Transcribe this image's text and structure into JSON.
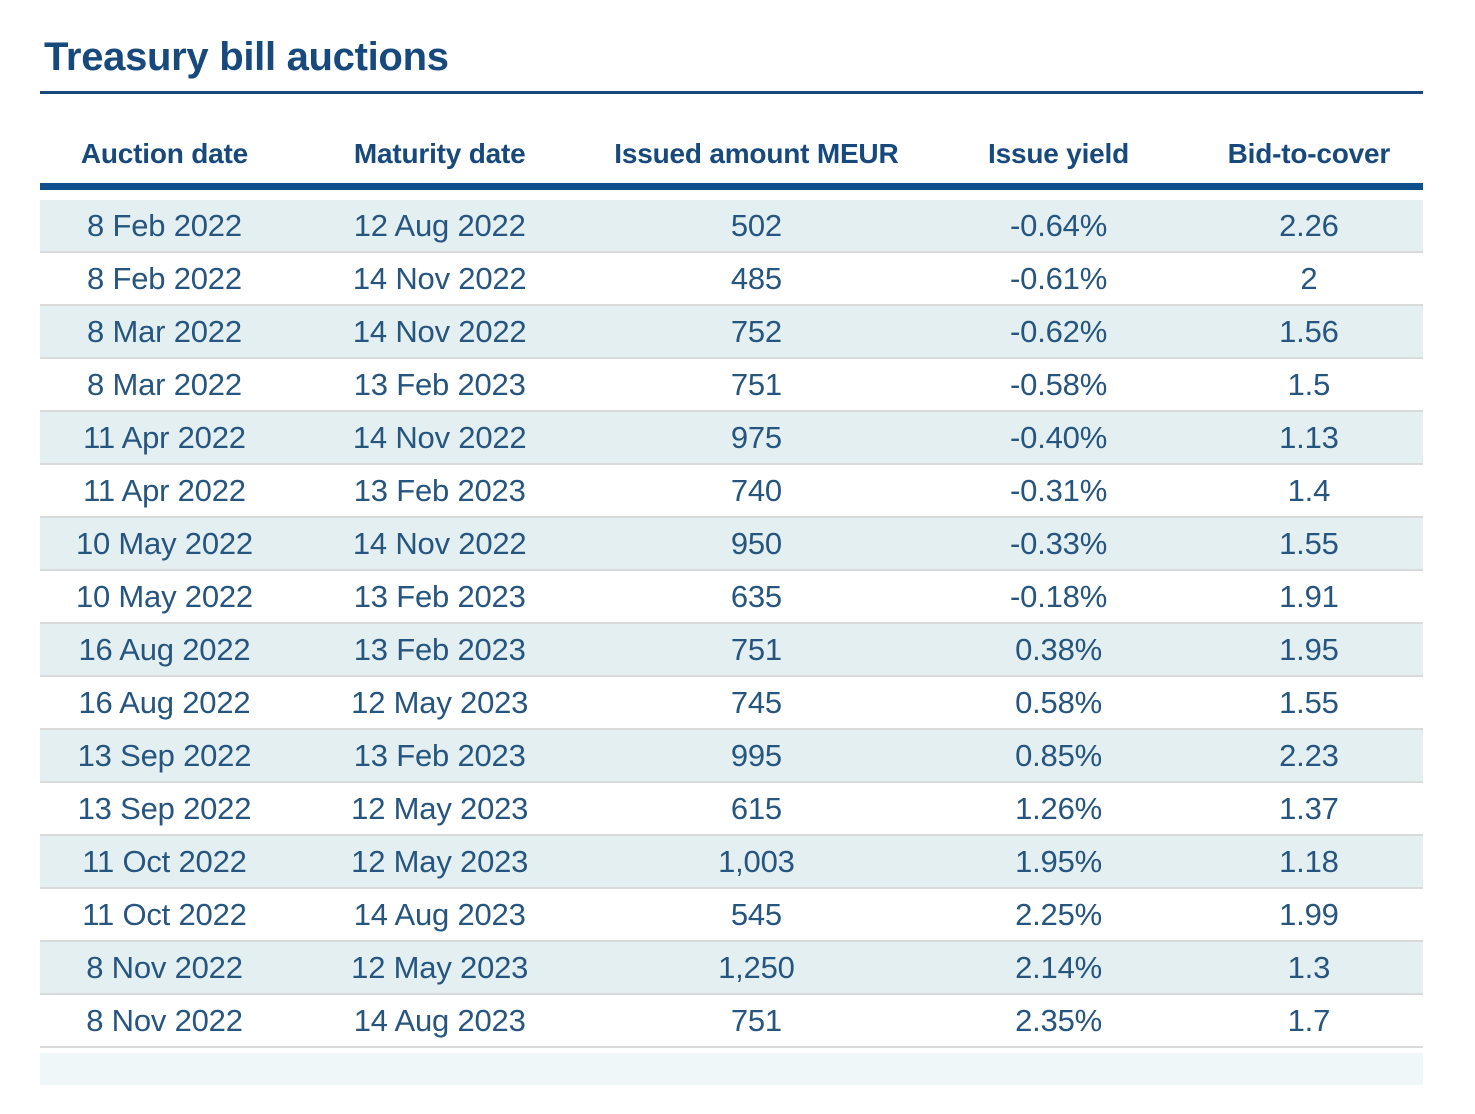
{
  "page": {
    "title": "Treasury bill auctions"
  },
  "colors": {
    "heading_navy": "#17497c",
    "cell_navy": "#26557f",
    "header_rule_blue": "#0f4f8c",
    "title_rule_navy": "#17497c",
    "stripe_background": "#e3eff1",
    "row_divider": "#dadada",
    "page_background": "#ffffff"
  },
  "chart_data": {
    "type": "table",
    "title": "Treasury bill auctions",
    "columns": [
      "Auction date",
      "Maturity date",
      "Issued amount MEUR",
      "Issue yield",
      "Bid-to-cover"
    ],
    "rows": [
      [
        "8 Feb 2022",
        "12 Aug 2022",
        "502",
        "-0.64%",
        "2.26"
      ],
      [
        "8 Feb 2022",
        "14 Nov 2022",
        "485",
        "-0.61%",
        "2"
      ],
      [
        "8 Mar 2022",
        "14 Nov 2022",
        "752",
        "-0.62%",
        "1.56"
      ],
      [
        "8 Mar 2022",
        "13 Feb 2023",
        "751",
        "-0.58%",
        "1.5"
      ],
      [
        "11 Apr 2022",
        "14 Nov 2022",
        "975",
        "-0.40%",
        "1.13"
      ],
      [
        "11 Apr 2022",
        "13 Feb 2023",
        "740",
        "-0.31%",
        "1.4"
      ],
      [
        "10 May 2022",
        "14 Nov 2022",
        "950",
        "-0.33%",
        "1.55"
      ],
      [
        "10 May 2022",
        "13 Feb 2023",
        "635",
        "-0.18%",
        "1.91"
      ],
      [
        "16 Aug 2022",
        "13 Feb 2023",
        "751",
        "0.38%",
        "1.95"
      ],
      [
        "16 Aug 2022",
        "12 May 2023",
        "745",
        "0.58%",
        "1.55"
      ],
      [
        "13 Sep 2022",
        "13 Feb 2023",
        "995",
        "0.85%",
        "2.23"
      ],
      [
        "13 Sep 2022",
        "12 May 2023",
        "615",
        "1.26%",
        "1.37"
      ],
      [
        "11 Oct 2022",
        "12 May 2023",
        "1,003",
        "1.95%",
        "1.18"
      ],
      [
        "11 Oct 2022",
        "14 Aug 2023",
        "545",
        "2.25%",
        "1.99"
      ],
      [
        "8 Nov 2022",
        "12 May 2023",
        "1,250",
        "2.14%",
        "1.3"
      ],
      [
        "8 Nov 2022",
        "14 Aug 2023",
        "751",
        "2.35%",
        "1.7"
      ]
    ]
  }
}
